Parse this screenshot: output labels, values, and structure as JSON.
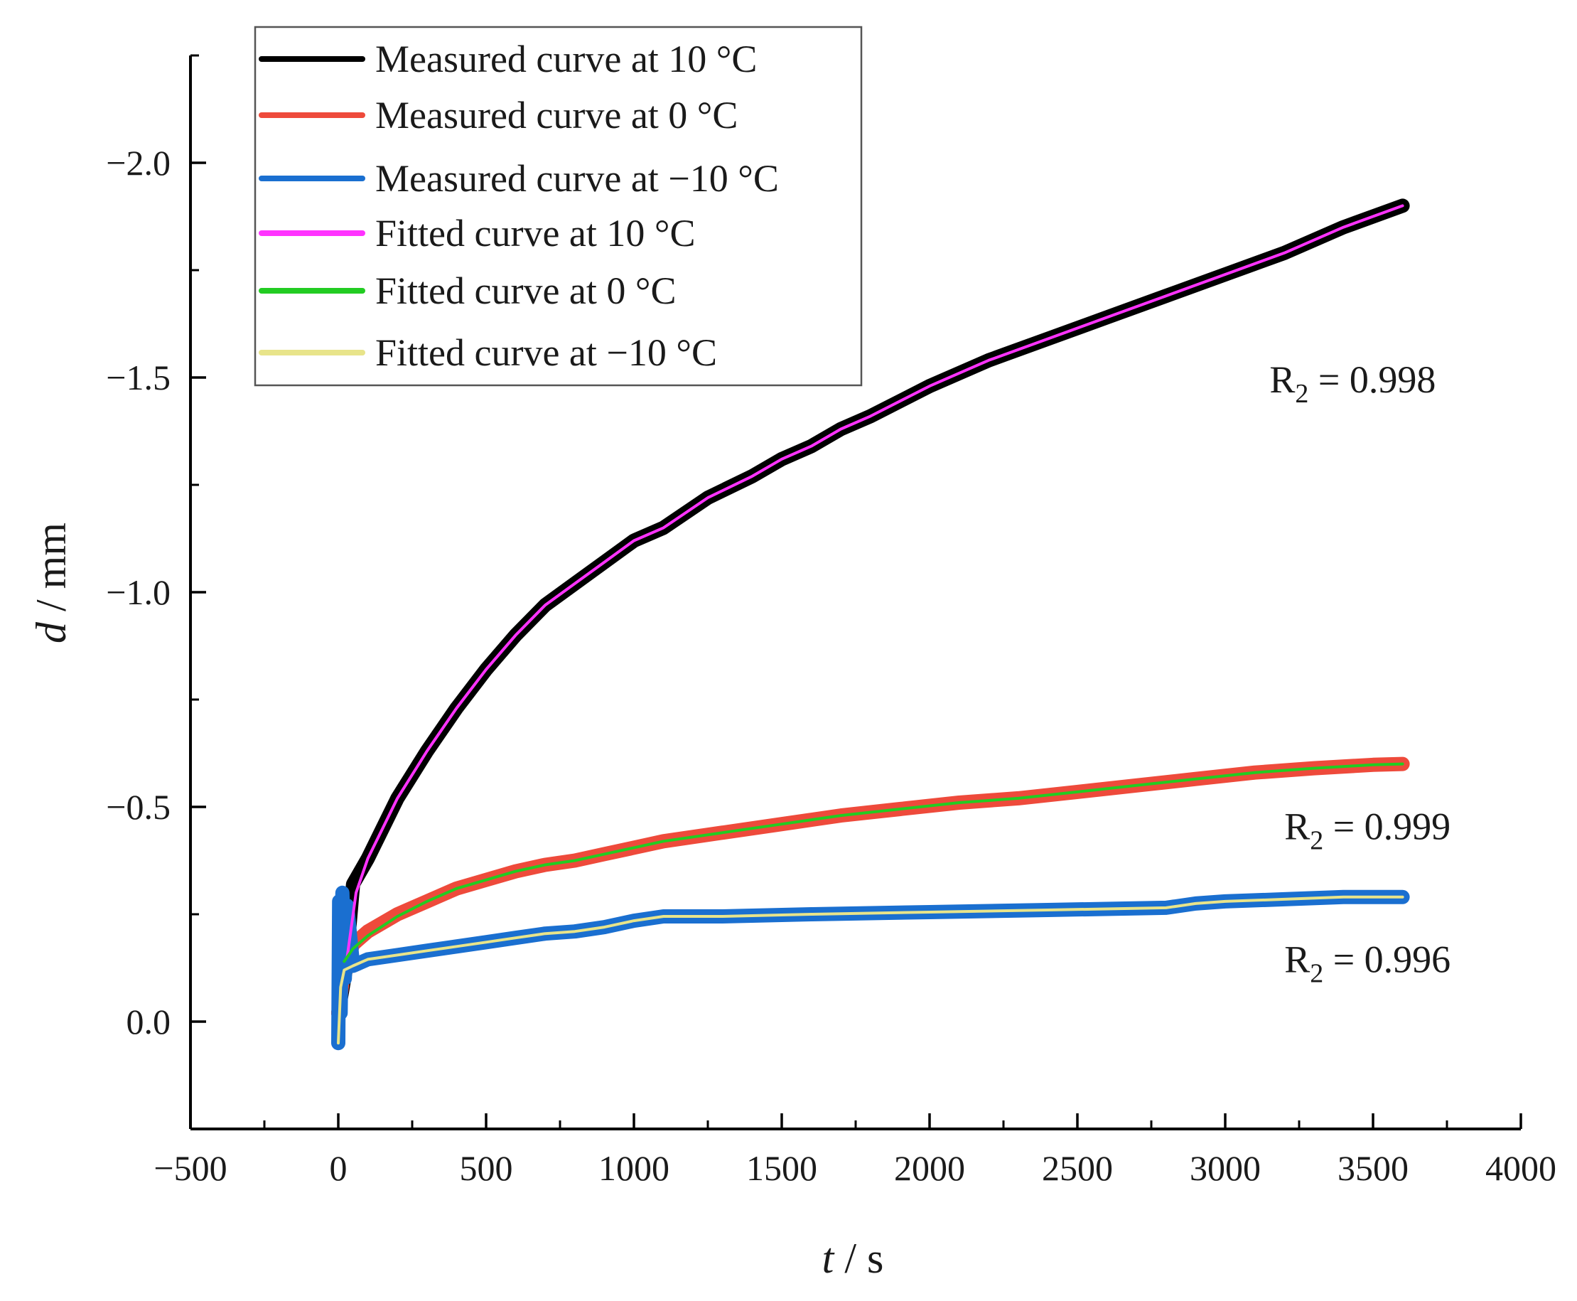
{
  "chart_data": {
    "type": "line",
    "title": "",
    "xlabel": {
      "var": "t",
      "unit": " / s"
    },
    "ylabel": {
      "var": "d",
      "unit": " / mm"
    },
    "xlim": [
      -500,
      4000
    ],
    "ylim": [
      0.25,
      -2.25
    ],
    "y_axis_inverted": true,
    "grid": false,
    "legend_position": "top-left",
    "x_ticks": [
      {
        "value": -500,
        "label": "−500"
      },
      {
        "value": 0,
        "label": "0"
      },
      {
        "value": 500,
        "label": "500"
      },
      {
        "value": 1000,
        "label": "1000"
      },
      {
        "value": 1500,
        "label": "1500"
      },
      {
        "value": 2000,
        "label": "2000"
      },
      {
        "value": 2500,
        "label": "2500"
      },
      {
        "value": 3000,
        "label": "3000"
      },
      {
        "value": 3500,
        "label": "3500"
      },
      {
        "value": 4000,
        "label": "4000"
      }
    ],
    "x_minor_ticks": [
      -250,
      250,
      750,
      1250,
      1750,
      2250,
      2750,
      3250,
      3750
    ],
    "y_ticks": [
      {
        "value": 0.0,
        "label": "0.0"
      },
      {
        "value": -0.5,
        "label": "−0.5"
      },
      {
        "value": -1.0,
        "label": "−1.0"
      },
      {
        "value": -1.5,
        "label": "−1.5"
      },
      {
        "value": -2.0,
        "label": "−2.0"
      }
    ],
    "y_minor_ticks": [
      0.25,
      -0.25,
      -0.75,
      -1.25,
      -1.75,
      -2.25
    ],
    "series": [
      {
        "name": "Measured curve at 10 °C",
        "color": "#000000",
        "width": 20,
        "kind": "measured",
        "x": [
          0,
          25,
          50,
          100,
          150,
          200,
          300,
          400,
          500,
          600,
          700,
          800,
          900,
          1000,
          1100,
          1250,
          1400,
          1500,
          1600,
          1700,
          1800,
          2000,
          2200,
          2400,
          2600,
          2800,
          3000,
          3200,
          3400,
          3600
        ],
        "y": [
          -0.02,
          -0.12,
          -0.32,
          -0.38,
          -0.45,
          -0.52,
          -0.63,
          -0.73,
          -0.82,
          -0.9,
          -0.97,
          -1.02,
          -1.07,
          -1.12,
          -1.15,
          -1.22,
          -1.27,
          -1.31,
          -1.34,
          -1.38,
          -1.41,
          -1.48,
          -1.54,
          -1.59,
          -1.64,
          -1.69,
          -1.74,
          -1.79,
          -1.85,
          -1.9
        ]
      },
      {
        "name": "Measured curve at 0 °C",
        "color": "#ee4a3b",
        "width": 20,
        "kind": "measured",
        "x": [
          0,
          20,
          50,
          100,
          200,
          300,
          400,
          500,
          600,
          700,
          800,
          900,
          1000,
          1100,
          1300,
          1500,
          1700,
          1900,
          2100,
          2300,
          2500,
          2700,
          2900,
          3100,
          3300,
          3500,
          3600
        ],
        "y": [
          -0.02,
          -0.12,
          -0.18,
          -0.21,
          -0.25,
          -0.28,
          -0.31,
          -0.33,
          -0.35,
          -0.365,
          -0.375,
          -0.39,
          -0.405,
          -0.42,
          -0.44,
          -0.46,
          -0.48,
          -0.495,
          -0.51,
          -0.52,
          -0.535,
          -0.55,
          -0.565,
          -0.58,
          -0.59,
          -0.598,
          -0.6
        ]
      },
      {
        "name": "Measured curve at −10 °C",
        "color": "#1a6fd0",
        "width": 20,
        "kind": "measured",
        "x": [
          0,
          3,
          8,
          14,
          22,
          30,
          50,
          100,
          200,
          300,
          400,
          500,
          600,
          700,
          800,
          900,
          1000,
          1100,
          1300,
          1600,
          2000,
          2400,
          2800,
          2900,
          3000,
          3200,
          3400,
          3600
        ],
        "y": [
          0.05,
          -0.28,
          -0.02,
          -0.3,
          -0.1,
          -0.27,
          -0.13,
          -0.145,
          -0.155,
          -0.165,
          -0.175,
          -0.185,
          -0.195,
          -0.205,
          -0.21,
          -0.22,
          -0.235,
          -0.245,
          -0.245,
          -0.25,
          -0.255,
          -0.26,
          -0.265,
          -0.275,
          -0.28,
          -0.285,
          -0.29,
          -0.29
        ]
      },
      {
        "name": "Fitted curve at 10 °C",
        "color": "#ff33ff",
        "width": 4,
        "kind": "fitted",
        "x": [
          30,
          60,
          100,
          150,
          200,
          300,
          400,
          500,
          600,
          700,
          800,
          900,
          1000,
          1100,
          1250,
          1400,
          1500,
          1600,
          1700,
          1800,
          2000,
          2200,
          2400,
          2600,
          2800,
          3000,
          3200,
          3400,
          3600
        ],
        "y": [
          -0.15,
          -0.3,
          -0.38,
          -0.45,
          -0.52,
          -0.63,
          -0.73,
          -0.82,
          -0.9,
          -0.97,
          -1.02,
          -1.07,
          -1.12,
          -1.15,
          -1.22,
          -1.27,
          -1.31,
          -1.34,
          -1.38,
          -1.41,
          -1.48,
          -1.54,
          -1.59,
          -1.64,
          -1.69,
          -1.74,
          -1.79,
          -1.85,
          -1.9
        ]
      },
      {
        "name": "Fitted curve at 0 °C",
        "color": "#22cc22",
        "width": 4,
        "kind": "fitted",
        "x": [
          20,
          50,
          100,
          200,
          300,
          400,
          500,
          600,
          700,
          800,
          900,
          1000,
          1100,
          1300,
          1500,
          1700,
          1900,
          2100,
          2300,
          2500,
          2700,
          2900,
          3100,
          3300,
          3500,
          3600
        ],
        "y": [
          -0.14,
          -0.17,
          -0.2,
          -0.245,
          -0.28,
          -0.31,
          -0.33,
          -0.35,
          -0.365,
          -0.375,
          -0.39,
          -0.405,
          -0.42,
          -0.44,
          -0.46,
          -0.48,
          -0.495,
          -0.51,
          -0.52,
          -0.535,
          -0.55,
          -0.565,
          -0.58,
          -0.59,
          -0.598,
          -0.6
        ]
      },
      {
        "name": "Fitted curve at −10 °C",
        "color": "#e8e48a",
        "width": 4,
        "kind": "fitted",
        "x": [
          0,
          8,
          20,
          50,
          100,
          200,
          300,
          400,
          500,
          600,
          700,
          800,
          900,
          1000,
          1100,
          1300,
          1600,
          2000,
          2400,
          2800,
          2900,
          3000,
          3200,
          3400,
          3600
        ],
        "y": [
          0.05,
          -0.08,
          -0.12,
          -0.13,
          -0.145,
          -0.155,
          -0.165,
          -0.175,
          -0.185,
          -0.195,
          -0.205,
          -0.21,
          -0.22,
          -0.235,
          -0.245,
          -0.245,
          -0.25,
          -0.255,
          -0.26,
          -0.265,
          -0.275,
          -0.28,
          -0.285,
          -0.29,
          -0.29
        ]
      }
    ],
    "annotations": [
      {
        "base": "R",
        "sub": "2",
        "text": " = 0.998",
        "x": 3150,
        "y": -1.465
      },
      {
        "base": "R",
        "sub": "2",
        "text": " = 0.999",
        "x": 3200,
        "y": -0.425
      },
      {
        "base": "R",
        "sub": "2",
        "text": " = 0.996",
        "x": 3200,
        "y": -0.115
      }
    ]
  }
}
